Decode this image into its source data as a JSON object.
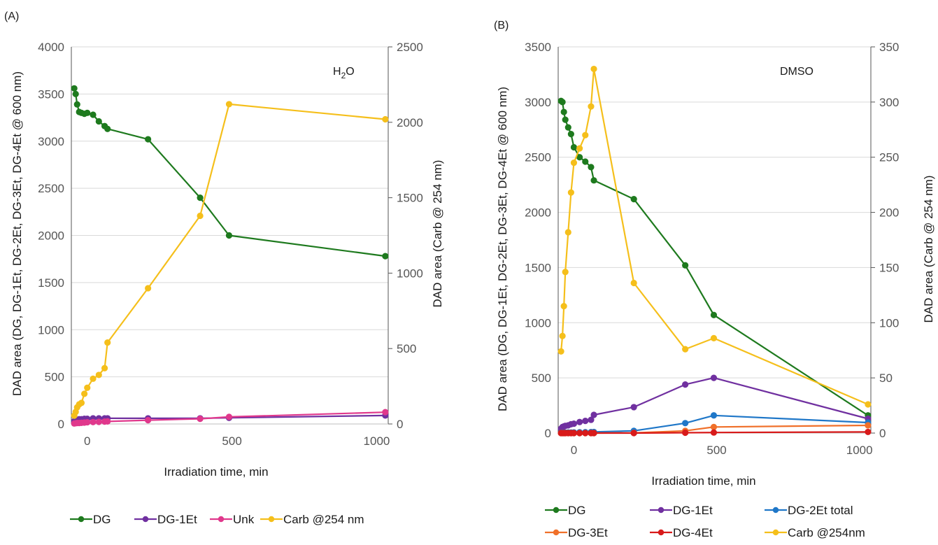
{
  "chart_data": [
    {
      "type": "line",
      "panel_label": "(A)",
      "annotation": "H",
      "annotation_sub": "2",
      "annotation_tail": "O",
      "xlabel": "Irradiation time, min",
      "ylabel": "DAD area (DG, DG-1Et, DG-2Et, DG-3Et, DG-4Et @ 600 nm)",
      "y2label": "DAD area (Carb @ 254 nm)",
      "xlim": [
        -55,
        1040
      ],
      "ylim": [
        0,
        4000
      ],
      "y2lim": [
        0,
        2500
      ],
      "xticks": [
        "0",
        "500",
        "1000"
      ],
      "xtick_values": [
        0,
        500,
        1000
      ],
      "yticks": [
        "0",
        "500",
        "1000",
        "1500",
        "2000",
        "2500",
        "3000",
        "3500",
        "4000"
      ],
      "y2ticks": [
        "0",
        "500",
        "1000",
        "1500",
        "2000",
        "2500"
      ],
      "legend_position": "bottom",
      "series": [
        {
          "name": "DG",
          "color": "#1e7a1e",
          "axis": "left",
          "x": [
            -45,
            -40,
            -35,
            -28,
            -20,
            -10,
            0,
            20,
            40,
            60,
            70,
            210,
            390,
            490,
            1030
          ],
          "y": [
            3560,
            3500,
            3390,
            3310,
            3300,
            3290,
            3300,
            3280,
            3210,
            3160,
            3130,
            3020,
            2400,
            2000,
            1780
          ]
        },
        {
          "name": "DG-1Et",
          "color": "#7030a0",
          "axis": "left",
          "x": [
            -45,
            -40,
            -35,
            -28,
            -20,
            -10,
            0,
            20,
            40,
            60,
            70,
            210,
            390,
            490,
            1030
          ],
          "y": [
            30,
            40,
            45,
            50,
            50,
            55,
            55,
            60,
            60,
            60,
            60,
            60,
            60,
            65,
            90
          ]
        },
        {
          "name": "Unk",
          "color": "#e0388c",
          "axis": "left",
          "x": [
            -45,
            -40,
            -35,
            -28,
            -20,
            -10,
            0,
            20,
            40,
            60,
            70,
            210,
            390,
            490,
            1030
          ],
          "y": [
            5,
            8,
            10,
            10,
            12,
            15,
            18,
            20,
            22,
            25,
            27,
            40,
            55,
            75,
            125
          ]
        },
        {
          "name": "Carb @254 nm",
          "color": "#f5bf1b",
          "axis": "right",
          "x": [
            -45,
            -40,
            -35,
            -28,
            -20,
            -10,
            0,
            20,
            40,
            60,
            70,
            210,
            390,
            490,
            1030
          ],
          "y": [
            55,
            80,
            110,
            130,
            140,
            200,
            240,
            300,
            325,
            370,
            540,
            900,
            1380,
            2120,
            2020
          ]
        }
      ]
    },
    {
      "type": "line",
      "panel_label": "(B)",
      "annotation": "DMSO",
      "xlabel": "Irradiation time, min",
      "ylabel": "DAD area (DG, DG-1Et, DG-2Et, DG-3Et, DG-4Et @ 600 nm)",
      "y2label": "DAD area (Carb @ 254 nm)",
      "xlim": [
        -55,
        1040
      ],
      "ylim": [
        0,
        3500
      ],
      "y2lim": [
        0,
        350
      ],
      "xticks": [
        "0",
        "500",
        "1000"
      ],
      "xtick_values": [
        0,
        500,
        1000
      ],
      "yticks": [
        "0",
        "500",
        "1000",
        "1500",
        "2000",
        "2500",
        "3000",
        "3500"
      ],
      "y2ticks": [
        "0",
        "50",
        "100",
        "150",
        "200",
        "250",
        "300",
        "350"
      ],
      "legend_position": "bottom",
      "series": [
        {
          "name": "DG",
          "color": "#1e7a1e",
          "axis": "left",
          "x": [
            -45,
            -40,
            -35,
            -30,
            -20,
            -10,
            0,
            20,
            40,
            60,
            70,
            210,
            390,
            490,
            1030
          ],
          "y": [
            3010,
            3000,
            2910,
            2840,
            2770,
            2710,
            2590,
            2500,
            2460,
            2410,
            2290,
            2120,
            1520,
            1070,
            160
          ]
        },
        {
          "name": "DG-1Et",
          "color": "#7030a0",
          "axis": "left",
          "x": [
            -45,
            -40,
            -35,
            -30,
            -20,
            -10,
            0,
            20,
            40,
            60,
            70,
            210,
            390,
            490,
            1030
          ],
          "y": [
            40,
            55,
            60,
            65,
            70,
            80,
            85,
            100,
            110,
            120,
            165,
            235,
            440,
            500,
            130
          ]
        },
        {
          "name": "DG-2Et total",
          "color": "#1f77c8",
          "axis": "left",
          "x": [
            -45,
            -40,
            -35,
            -30,
            -20,
            -10,
            0,
            20,
            40,
            60,
            70,
            210,
            390,
            490,
            1030
          ],
          "y": [
            2,
            3,
            3,
            4,
            5,
            5,
            6,
            7,
            8,
            9,
            10,
            20,
            90,
            160,
            95
          ]
        },
        {
          "name": "DG-3Et",
          "color": "#f0702a",
          "axis": "left",
          "x": [
            -45,
            -40,
            -35,
            -30,
            -20,
            -10,
            0,
            20,
            40,
            60,
            70,
            210,
            390,
            490,
            1030
          ],
          "y": [
            0,
            0,
            0,
            0,
            0,
            0,
            0,
            0,
            0,
            0,
            0,
            2,
            20,
            55,
            70
          ]
        },
        {
          "name": "DG-4Et",
          "color": "#d81a1a",
          "axis": "left",
          "x": [
            -45,
            -40,
            -35,
            -30,
            -20,
            -10,
            0,
            20,
            40,
            60,
            70,
            210,
            390,
            490,
            1030
          ],
          "y": [
            0,
            0,
            0,
            0,
            0,
            0,
            0,
            0,
            0,
            0,
            0,
            0,
            3,
            5,
            10
          ]
        },
        {
          "name": "Carb @254nm",
          "color": "#f5bf1b",
          "axis": "right",
          "x": [
            -45,
            -40,
            -35,
            -30,
            -20,
            -10,
            0,
            20,
            40,
            60,
            70,
            210,
            390,
            490,
            1030
          ],
          "y": [
            74,
            88,
            115,
            146,
            182,
            218,
            245,
            258,
            270,
            296,
            330,
            136,
            76,
            86,
            26
          ]
        }
      ]
    }
  ]
}
